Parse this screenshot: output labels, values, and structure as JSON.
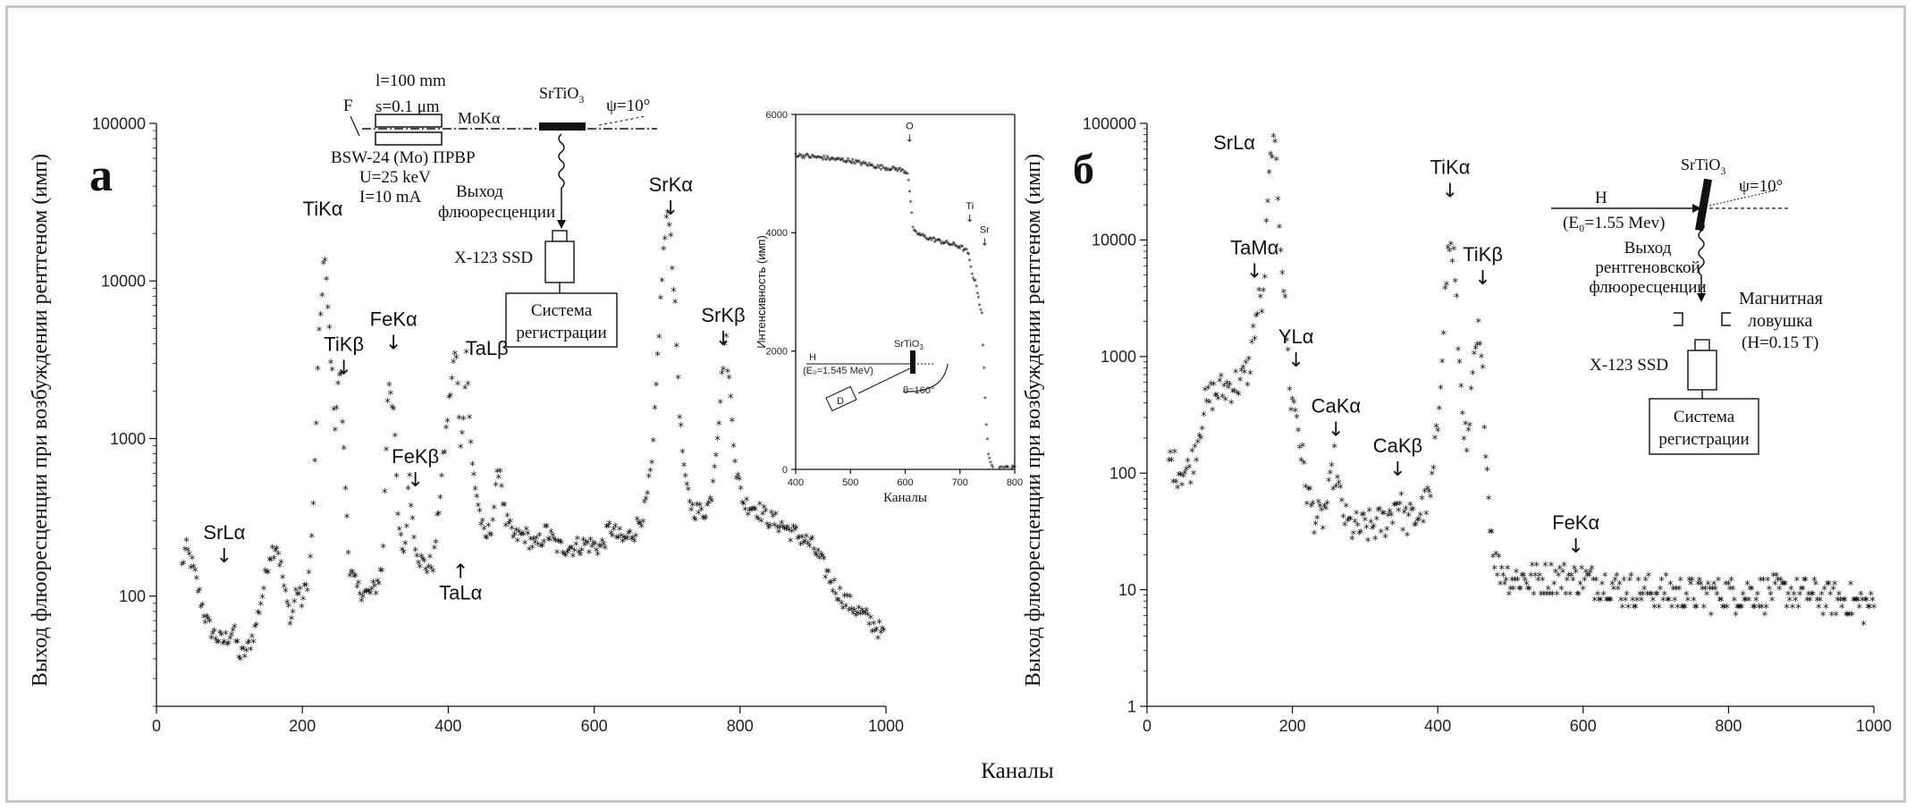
{
  "x_axis_label": "Каналы",
  "chart_data": [
    {
      "id": "a",
      "type": "scatter",
      "panel_label": "а",
      "ylabel": "Выход флюоресценции при возбуждении рентгеном (имп)",
      "xlim": [
        0,
        1000
      ],
      "ylim": [
        20,
        100000
      ],
      "yscale": "log",
      "xticks": [
        0,
        200,
        400,
        600,
        800,
        1000
      ],
      "yticks": [
        {
          "v": 100,
          "t": "100"
        },
        {
          "v": 1000,
          "t": "1000"
        },
        {
          "v": 10000,
          "t": "10000"
        },
        {
          "v": 100000,
          "t": "100000"
        }
      ],
      "marker": "*",
      "profile": [
        [
          35,
          150
        ],
        [
          40,
          200
        ],
        [
          50,
          150
        ],
        [
          60,
          95
        ],
        [
          70,
          65
        ],
        [
          80,
          55
        ],
        [
          90,
          50
        ],
        [
          100,
          55
        ],
        [
          105,
          60
        ],
        [
          115,
          40
        ],
        [
          125,
          45
        ],
        [
          135,
          60
        ],
        [
          145,
          100
        ],
        [
          155,
          180
        ],
        [
          165,
          210
        ],
        [
          172,
          140
        ],
        [
          178,
          90
        ],
        [
          185,
          70
        ],
        [
          192,
          110
        ],
        [
          200,
          90
        ],
        [
          210,
          140
        ],
        [
          215,
          350
        ],
        [
          222,
          3500
        ],
        [
          230,
          15000
        ],
        [
          238,
          4000
        ],
        [
          245,
          1200
        ],
        [
          252,
          3000
        ],
        [
          258,
          600
        ],
        [
          265,
          140
        ],
        [
          275,
          110
        ],
        [
          290,
          100
        ],
        [
          300,
          110
        ],
        [
          310,
          150
        ],
        [
          318,
          2500
        ],
        [
          325,
          1500
        ],
        [
          332,
          250
        ],
        [
          340,
          180
        ],
        [
          347,
          600
        ],
        [
          352,
          250
        ],
        [
          360,
          170
        ],
        [
          370,
          150
        ],
        [
          380,
          160
        ],
        [
          390,
          500
        ],
        [
          400,
          1500
        ],
        [
          410,
          3700
        ],
        [
          418,
          800
        ],
        [
          425,
          3500
        ],
        [
          432,
          700
        ],
        [
          440,
          400
        ],
        [
          450,
          220
        ],
        [
          460,
          280
        ],
        [
          470,
          700
        ],
        [
          478,
          300
        ],
        [
          490,
          230
        ],
        [
          505,
          240
        ],
        [
          520,
          200
        ],
        [
          535,
          250
        ],
        [
          550,
          200
        ],
        [
          570,
          200
        ],
        [
          590,
          210
        ],
        [
          610,
          200
        ],
        [
          622,
          270
        ],
        [
          630,
          240
        ],
        [
          640,
          220
        ],
        [
          655,
          250
        ],
        [
          670,
          350
        ],
        [
          680,
          700
        ],
        [
          688,
          4000
        ],
        [
          695,
          15000
        ],
        [
          702,
          30000
        ],
        [
          710,
          8000
        ],
        [
          718,
          1200
        ],
        [
          725,
          500
        ],
        [
          735,
          350
        ],
        [
          750,
          330
        ],
        [
          760,
          400
        ],
        [
          770,
          1200
        ],
        [
          780,
          4500
        ],
        [
          788,
          1500
        ],
        [
          795,
          600
        ],
        [
          805,
          380
        ],
        [
          820,
          360
        ],
        [
          840,
          300
        ],
        [
          855,
          280
        ],
        [
          870,
          250
        ],
        [
          885,
          230
        ],
        [
          900,
          200
        ],
        [
          915,
          150
        ],
        [
          930,
          110
        ],
        [
          945,
          90
        ],
        [
          960,
          80
        ],
        [
          975,
          70
        ],
        [
          990,
          60
        ],
        [
          997,
          55
        ]
      ],
      "annotations": [
        {
          "text": "SrLα",
          "x": 93,
          "y": 230,
          "arrow": "down"
        },
        {
          "text": "TiKα",
          "x": 228,
          "y": 26000,
          "arrow": "none"
        },
        {
          "text": "TiKβ",
          "x": 257,
          "y": 3600,
          "arrow": "down"
        },
        {
          "text": "FeKα",
          "x": 325,
          "y": 5200,
          "arrow": "down"
        },
        {
          "text": "FeKβ",
          "x": 355,
          "y": 700,
          "arrow": "down"
        },
        {
          "text": "TaLβ",
          "x": 453,
          "y": 3400,
          "arrow": "none"
        },
        {
          "text": "TaLα",
          "x": 417,
          "y": 95,
          "arrow": "up"
        },
        {
          "text": "SrKα",
          "x": 705,
          "y": 37000,
          "arrow": "down"
        },
        {
          "text": "SrKβ",
          "x": 777,
          "y": 5500,
          "arrow": "down"
        }
      ]
    },
    {
      "id": "b",
      "type": "scatter",
      "panel_label": "б",
      "ylabel": "Выход флюоресценции при возбуждении рентгеном (имп)",
      "xlim": [
        0,
        1000
      ],
      "ylim": [
        1,
        100000
      ],
      "yscale": "log",
      "xticks": [
        0,
        200,
        400,
        600,
        800,
        1000
      ],
      "yticks": [
        {
          "v": 1,
          "t": "1"
        },
        {
          "v": 10,
          "t": "10"
        },
        {
          "v": 100,
          "t": "100"
        },
        {
          "v": 1000,
          "t": "1000"
        },
        {
          "v": 10000,
          "t": "10000"
        },
        {
          "v": 100000,
          "t": "100000"
        }
      ],
      "marker": "*",
      "profile": [
        [
          30,
          130
        ],
        [
          40,
          105
        ],
        [
          55,
          100
        ],
        [
          62,
          120
        ],
        [
          70,
          200
        ],
        [
          78,
          350
        ],
        [
          90,
          460
        ],
        [
          110,
          530
        ],
        [
          130,
          600
        ],
        [
          140,
          750
        ],
        [
          148,
          1800
        ],
        [
          155,
          3000
        ],
        [
          160,
          2800
        ],
        [
          165,
          15000
        ],
        [
          172,
          70000
        ],
        [
          178,
          40000
        ],
        [
          185,
          8000
        ],
        [
          192,
          1500
        ],
        [
          198,
          400
        ],
        [
          205,
          350
        ],
        [
          212,
          150
        ],
        [
          220,
          70
        ],
        [
          230,
          42
        ],
        [
          240,
          38
        ],
        [
          250,
          60
        ],
        [
          258,
          120
        ],
        [
          265,
          60
        ],
        [
          275,
          35
        ],
        [
          290,
          32
        ],
        [
          310,
          34
        ],
        [
          330,
          38
        ],
        [
          345,
          60
        ],
        [
          355,
          38
        ],
        [
          370,
          40
        ],
        [
          390,
          60
        ],
        [
          400,
          250
        ],
        [
          408,
          2000
        ],
        [
          415,
          9000
        ],
        [
          422,
          7000
        ],
        [
          430,
          800
        ],
        [
          440,
          130
        ],
        [
          450,
          800
        ],
        [
          456,
          1500
        ],
        [
          462,
          600
        ],
        [
          470,
          60
        ],
        [
          475,
          25
        ],
        [
          480,
          16
        ],
        [
          500,
          12
        ],
        [
          530,
          12
        ],
        [
          560,
          12
        ],
        [
          600,
          12
        ],
        [
          650,
          10
        ],
        [
          700,
          9
        ],
        [
          750,
          9
        ],
        [
          800,
          9
        ],
        [
          850,
          9
        ],
        [
          900,
          9
        ],
        [
          950,
          8
        ],
        [
          1000,
          7
        ]
      ],
      "annotations": [
        {
          "text": "SrLα",
          "x": 120,
          "y": 60000,
          "arrow": "none"
        },
        {
          "text": "TaMα",
          "x": 148,
          "y": 7500,
          "arrow": "down"
        },
        {
          "text": "YLα",
          "x": 205,
          "y": 1300,
          "arrow": "down"
        },
        {
          "text": "CaKα",
          "x": 260,
          "y": 330,
          "arrow": "down"
        },
        {
          "text": "CaKβ",
          "x": 345,
          "y": 150,
          "arrow": "down"
        },
        {
          "text": "TiKα",
          "x": 417,
          "y": 37000,
          "arrow": "down"
        },
        {
          "text": "TiKβ",
          "x": 462,
          "y": 6600,
          "arrow": "down"
        },
        {
          "text": "FeKα",
          "x": 590,
          "y": 33,
          "arrow": "down"
        }
      ]
    },
    {
      "id": "inset",
      "type": "scatter",
      "ylabel": "Интенсивность (имп)",
      "xlabel": "Каналы",
      "xlim": [
        400,
        800
      ],
      "ylim": [
        0,
        6000
      ],
      "yscale": "linear",
      "xticks": [
        400,
        500,
        600,
        700,
        800
      ],
      "yticks": [
        {
          "v": 0,
          "t": "0"
        },
        {
          "v": 2000,
          "t": "2000"
        },
        {
          "v": 4000,
          "t": "4000"
        },
        {
          "v": 6000,
          "t": "6000"
        }
      ],
      "profile": [
        [
          400,
          5300
        ],
        [
          450,
          5250
        ],
        [
          500,
          5200
        ],
        [
          550,
          5100
        ],
        [
          590,
          5050
        ],
        [
          605,
          5000
        ],
        [
          610,
          4500
        ],
        [
          615,
          4000
        ],
        [
          640,
          3900
        ],
        [
          680,
          3800
        ],
        [
          700,
          3750
        ],
        [
          715,
          3650
        ],
        [
          722,
          3300
        ],
        [
          730,
          3100
        ],
        [
          740,
          2600
        ],
        [
          745,
          1500
        ],
        [
          750,
          500
        ],
        [
          755,
          100
        ],
        [
          760,
          20
        ],
        [
          780,
          10
        ],
        [
          800,
          10
        ]
      ],
      "annotations": [
        {
          "text": "O",
          "x": 608,
          "y": 5750,
          "arrow": "down"
        },
        {
          "text": "Ti",
          "x": 718,
          "y": 4400,
          "arrow": "down"
        },
        {
          "text": "Sr",
          "x": 745,
          "y": 4000,
          "arrow": "down"
        }
      ]
    }
  ],
  "schematic_a": {
    "l": "l=100 mm",
    "s": "s=0.1 μm",
    "f": "F",
    "beam": "MoKα",
    "sample": "SrTiO",
    "sample_sub": "3",
    "psi": "ψ=10°",
    "tube": "BSW-24 (Mo) ПРВР",
    "u": "U=25 keV",
    "i": "I=10 mA",
    "out1": "Выход",
    "out2": "флюоресценции",
    "det": "X-123 SSD",
    "sys1": "Система",
    "sys2": "регистрации"
  },
  "schematic_inset": {
    "sample": "SrTiO",
    "sample_sub": "3",
    "ion": "H",
    "energy": "(E₀=1.545 MeV)",
    "det": "D",
    "theta": "θ=160°"
  },
  "schematic_b": {
    "sample": "SrTiO",
    "sample_sub": "3",
    "psi": "ψ=10°",
    "ion": "H",
    "energy": "(E₀=1.55 Mev)",
    "out1": "Выход",
    "out2": "рентгеновской",
    "out3": "флюоресценции",
    "trap1": "Магнитная",
    "trap2": "ловушка",
    "trap3": "(H=0.15 T)",
    "det": "X-123 SSD",
    "sys1": "Система",
    "sys2": "регистрации"
  }
}
